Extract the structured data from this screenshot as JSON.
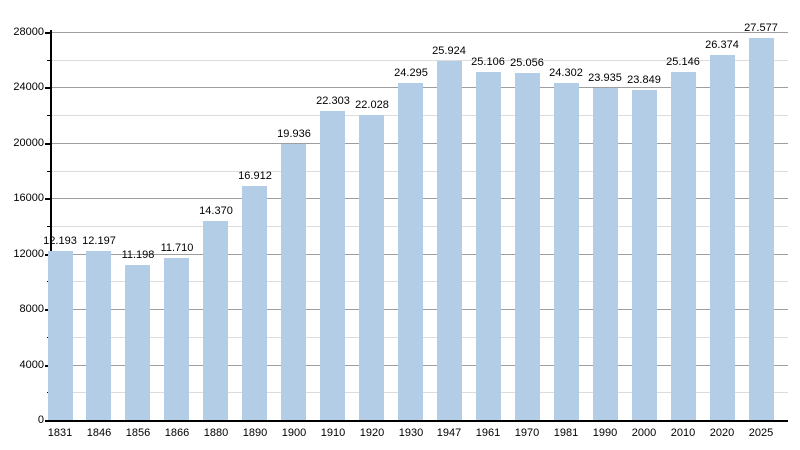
{
  "chart_data": {
    "type": "bar",
    "title": "",
    "xlabel": "",
    "ylabel": "",
    "categories": [
      "1831",
      "1846",
      "1856",
      "1866",
      "1880",
      "1890",
      "1900",
      "1910",
      "1920",
      "1930",
      "1947",
      "1961",
      "1970",
      "1981",
      "1990",
      "2000",
      "2010",
      "2020",
      "2025"
    ],
    "values": [
      12193,
      12197,
      11198,
      11710,
      14370,
      16912,
      19936,
      22303,
      22028,
      24295,
      25924,
      25106,
      25056,
      24302,
      23935,
      23849,
      25146,
      26374,
      27577
    ],
    "value_labels": [
      "12.193",
      "12.197",
      "11.198",
      "11.710",
      "14.370",
      "16.912",
      "19.936",
      "22.303",
      "22.028",
      "24.295",
      "25.924",
      "25.106",
      "25.056",
      "24.302",
      "23.935",
      "23.849",
      "25.146",
      "26.374",
      "27.577"
    ],
    "ylim": [
      0,
      28000
    ],
    "y_major_step": 4000,
    "y_minor_step": 2000,
    "y_tick_labels": [
      "0",
      "4000",
      "8000",
      "12000",
      "16000",
      "20000",
      "24000",
      "28000"
    ],
    "grid": "horizontal",
    "legend_position": "none",
    "colors": {
      "bar": "#b4cde6",
      "major_grid": "#9e9e9e",
      "minor_grid": "#dcdcdc",
      "axis": "#000000",
      "text": "#000000",
      "background": "#ffffff"
    }
  }
}
